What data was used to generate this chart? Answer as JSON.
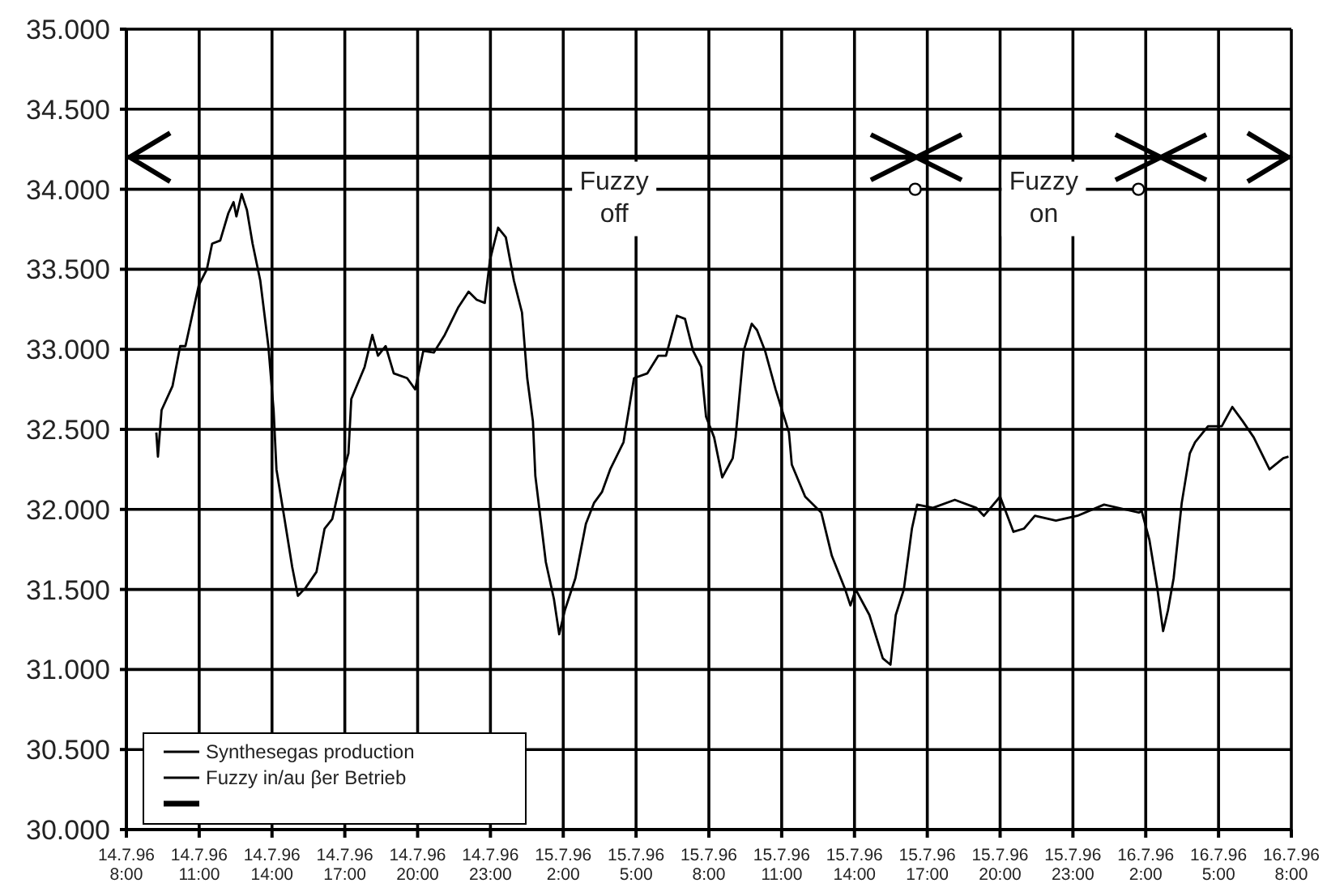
{
  "chart_data": {
    "type": "line",
    "xlim": [
      "1996-07-14T08:00",
      "1996-07-16T08:00"
    ],
    "xticks": [
      {
        "value": "1996-07-14T08:00",
        "label": "14.7.96\n8:00"
      },
      {
        "value": "1996-07-14T11:00",
        "label": "14.7.96\n11:00"
      },
      {
        "value": "1996-07-14T14:00",
        "label": "14.7.96\n14:00"
      },
      {
        "value": "1996-07-14T17:00",
        "label": "14.7.96\n17:00"
      },
      {
        "value": "1996-07-14T20:00",
        "label": "14.7.96\n20:00"
      },
      {
        "value": "1996-07-14T23:00",
        "label": "14.7.96\n23:00"
      },
      {
        "value": "1996-07-15T02:00",
        "label": "15.7.96\n2:00"
      },
      {
        "value": "1996-07-15T05:00",
        "label": "15.7.96\n5:00"
      },
      {
        "value": "1996-07-15T08:00",
        "label": "15.7.96\n8:00"
      },
      {
        "value": "1996-07-15T11:00",
        "label": "15.7.96\n11:00"
      },
      {
        "value": "1996-07-15T14:00",
        "label": "15.7.96\n14:00"
      },
      {
        "value": "1996-07-15T17:00",
        "label": "15.7.96\n17:00"
      },
      {
        "value": "1996-07-15T20:00",
        "label": "15.7.96\n20:00"
      },
      {
        "value": "1996-07-15T23:00",
        "label": "15.7.96\n23:00"
      },
      {
        "value": "1996-07-16T02:00",
        "label": "16.7.96\n2:00"
      },
      {
        "value": "1996-07-16T05:00",
        "label": "16.7.96\n5:00"
      },
      {
        "value": "1996-07-16T08:00",
        "label": "16.7.96\n8:00"
      }
    ],
    "ylim": [
      30000,
      35000
    ],
    "yticks": [
      {
        "value": 30000,
        "label": "30.000"
      },
      {
        "value": 30500,
        "label": "30.500"
      },
      {
        "value": 31000,
        "label": "31.000"
      },
      {
        "value": 31500,
        "label": "31.500"
      },
      {
        "value": 32000,
        "label": "32.000"
      },
      {
        "value": 32500,
        "label": "32.500"
      },
      {
        "value": 33000,
        "label": "33.000"
      },
      {
        "value": 33500,
        "label": "33.500"
      },
      {
        "value": 34000,
        "label": "34.000"
      },
      {
        "value": 34500,
        "label": "34.500"
      },
      {
        "value": 35000,
        "label": "35.000"
      }
    ],
    "grid": true,
    "ref_lines": [
      {
        "axis": "y",
        "value": 34200,
        "color": "#000000"
      }
    ],
    "legend": "bottom left",
    "marker": "none",
    "line_style": "solid",
    "annotations": [
      {
        "text": "Fuzzy\noff",
        "x": "1996-07-15T04:06",
        "y": 33970
      },
      {
        "text": "Fuzzy\non",
        "x": "1996-07-15T21:48",
        "y": 33970
      }
    ],
    "series": [
      {
        "name": "Synthesegas production",
        "color": "#000000",
        "x": [
          "1996-07-14T09:14",
          "1996-07-14T09:18",
          "1996-07-14T09:27",
          "1996-07-14T09:54",
          "1996-07-14T10:13",
          "1996-07-14T10:26",
          "1996-07-14T10:59",
          "1996-07-14T11:19",
          "1996-07-14T11:32",
          "1996-07-14T11:52",
          "1996-07-14T12:12",
          "1996-07-14T12:25",
          "1996-07-14T12:32",
          "1996-07-14T12:45",
          "1996-07-14T12:58",
          "1996-07-14T13:12",
          "1996-07-14T13:31",
          "1996-07-14T13:51",
          "1996-07-14T14:04",
          "1996-07-14T14:11",
          "1996-07-14T14:31",
          "1996-07-14T14:50",
          "1996-07-14T15:04",
          "1996-07-14T15:23",
          "1996-07-14T15:50",
          "1996-07-14T16:10",
          "1996-07-14T16:29",
          "1996-07-14T16:50",
          "1996-07-14T17:09",
          "1996-07-14T17:16",
          "1996-07-14T17:49",
          "1996-07-14T18:08",
          "1996-07-14T18:22",
          "1996-07-14T18:41",
          "1996-07-14T19:01",
          "1996-07-14T19:34",
          "1996-07-14T19:54",
          "1996-07-14T20:14",
          "1996-07-14T20:40",
          "1996-07-14T21:07",
          "1996-07-14T21:40",
          "1996-07-14T22:06",
          "1996-07-14T22:26",
          "1996-07-14T22:46",
          "1996-07-14T22:59",
          "1996-07-14T23:19",
          "1996-07-14T23:38",
          "1996-07-14T23:58",
          "1996-07-15T00:18",
          "1996-07-15T00:31",
          "1996-07-15T00:45",
          "1996-07-15T00:51",
          "1996-07-15T01:17",
          "1996-07-15T01:37",
          "1996-07-15T01:50",
          "1996-07-15T02:04",
          "1996-07-15T02:30",
          "1996-07-15T02:56",
          "1996-07-15T03:16",
          "1996-07-15T03:36",
          "1996-07-15T03:56",
          "1996-07-15T04:29",
          "1996-07-15T04:55",
          "1996-07-15T05:28",
          "1996-07-15T05:55",
          "1996-07-15T06:14",
          "1996-07-15T06:41",
          "1996-07-15T07:01",
          "1996-07-15T07:21",
          "1996-07-15T07:41",
          "1996-07-15T07:53",
          "1996-07-15T08:13",
          "1996-07-15T08:33",
          "1996-07-15T08:59",
          "1996-07-15T09:06",
          "1996-07-15T09:26",
          "1996-07-15T09:46",
          "1996-07-15T09:59",
          "1996-07-15T10:19",
          "1996-07-15T10:45",
          "1996-07-15T11:18",
          "1996-07-15T11:25",
          "1996-07-15T11:58",
          "1996-07-15T12:38",
          "1996-07-15T13:04",
          "1996-07-15T13:37",
          "1996-07-15T13:50",
          "1996-07-15T14:03",
          "1996-07-15T14:37",
          "1996-07-15T15:10",
          "1996-07-15T15:29",
          "1996-07-15T15:42",
          "1996-07-15T16:02",
          "1996-07-15T16:22",
          "1996-07-15T16:35",
          "1996-07-15T17:14",
          "1996-07-15T18:08",
          "1996-07-15T19:01",
          "1996-07-15T19:20",
          "1996-07-15T20:00",
          "1996-07-15T20:33",
          "1996-07-15T20:59",
          "1996-07-15T21:26",
          "1996-07-15T22:18",
          "1996-07-15T23:11",
          "1996-07-16T00:17",
          "1996-07-16T01:43",
          "1996-07-16T01:50",
          "1996-07-16T02:09",
          "1996-07-16T02:29",
          "1996-07-16T02:43",
          "1996-07-16T02:55",
          "1996-07-16T03:09",
          "1996-07-16T03:29",
          "1996-07-16T03:49",
          "1996-07-16T04:02",
          "1996-07-16T04:34",
          "1996-07-16T05:08",
          "1996-07-16T05:34",
          "1996-07-16T06:00",
          "1996-07-16T06:27",
          "1996-07-16T07:06",
          "1996-07-16T07:40",
          "1996-07-16T07:53"
        ],
        "values": [
          32480,
          32330,
          32620,
          32770,
          33020,
          33020,
          33400,
          33500,
          33660,
          33680,
          33850,
          33920,
          33830,
          33970,
          33870,
          33660,
          33430,
          33020,
          32620,
          32250,
          31940,
          31640,
          31460,
          31510,
          31610,
          31880,
          31940,
          32180,
          32350,
          32690,
          32890,
          33090,
          32960,
          33020,
          32850,
          32820,
          32750,
          32990,
          32980,
          33090,
          33260,
          33360,
          33310,
          33290,
          33560,
          33760,
          33700,
          33430,
          33230,
          32820,
          32550,
          32210,
          31670,
          31440,
          31220,
          31370,
          31570,
          31910,
          32040,
          32110,
          32250,
          32420,
          32820,
          32850,
          32960,
          32960,
          33210,
          33190,
          32990,
          32890,
          32580,
          32450,
          32200,
          32320,
          32450,
          32990,
          33160,
          33120,
          32990,
          32750,
          32480,
          32280,
          32080,
          31980,
          31710,
          31500,
          31400,
          31500,
          31340,
          31070,
          31030,
          31340,
          31500,
          31880,
          32030,
          32010,
          32060,
          32010,
          31960,
          32080,
          31860,
          31880,
          31960,
          31930,
          31960,
          32030,
          31980,
          31990,
          31810,
          31500,
          31240,
          31370,
          31570,
          32040,
          32350,
          32420,
          32520,
          32520,
          32640,
          32550,
          32450,
          32250,
          32320,
          32330
        ]
      },
      {
        "name": "Fuzzy in/au βer Betrieb",
        "color": "#000000",
        "x": [
          "1996-07-14T08:00",
          "1996-07-15T01:00",
          "1996-07-15T02:00",
          "1996-07-15T06:24",
          "1996-07-15T16:30",
          "1996-07-15T19:24",
          "1996-07-15T20:00",
          "1996-07-15T23:48",
          "1996-07-16T08:00"
        ],
        "values": [
          34000,
          34000,
          null,
          34000,
          34000,
          34000,
          null,
          34000,
          34000
        ]
      },
      {
        "type": "scatter",
        "marker": "circle",
        "color": "#000000",
        "x": [
          "1996-07-15T16:30",
          "1996-07-16T01:42"
        ],
        "values": [
          34000,
          34000
        ]
      }
    ]
  }
}
